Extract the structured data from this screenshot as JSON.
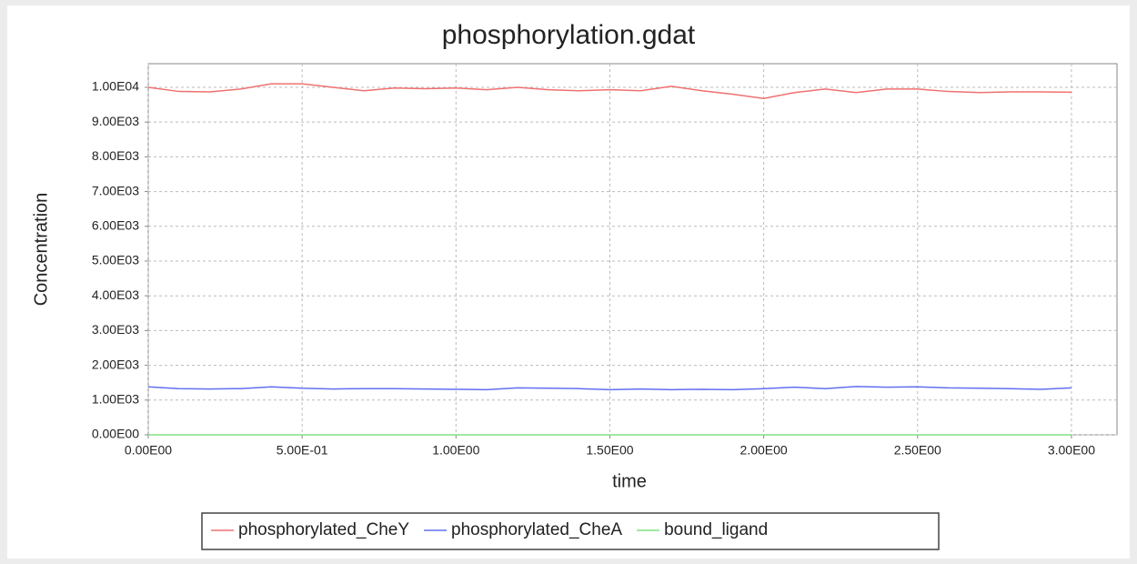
{
  "chart_data": {
    "type": "line",
    "title": "phosphorylation.gdat",
    "xlabel": "time",
    "ylabel": "Concentration",
    "x": [
      0,
      0.1,
      0.2,
      0.3,
      0.4,
      0.5,
      0.6,
      0.7,
      0.8,
      0.9,
      1.0,
      1.1,
      1.2,
      1.3,
      1.4,
      1.5,
      1.6,
      1.7,
      1.8,
      1.9,
      2.0,
      2.1,
      2.2,
      2.3,
      2.4,
      2.5,
      2.6,
      2.7,
      2.8,
      2.9,
      3.0
    ],
    "series": [
      {
        "name": "phosphorylated_CheY",
        "color": "#f07070",
        "values": [
          10000,
          9880,
          9870,
          9950,
          10100,
          10100,
          10000,
          9900,
          9980,
          9960,
          9980,
          9930,
          10000,
          9930,
          9900,
          9930,
          9900,
          10030,
          9900,
          9800,
          9680,
          9850,
          9950,
          9850,
          9950,
          9950,
          9880,
          9850,
          9870,
          9870,
          9860
        ]
      },
      {
        "name": "phosphorylated_CheA",
        "color": "#6070f0",
        "values": [
          1380,
          1330,
          1320,
          1330,
          1380,
          1340,
          1320,
          1330,
          1330,
          1320,
          1310,
          1300,
          1350,
          1340,
          1330,
          1300,
          1320,
          1300,
          1310,
          1300,
          1330,
          1370,
          1330,
          1390,
          1370,
          1380,
          1350,
          1340,
          1330,
          1310,
          1350
        ]
      },
      {
        "name": "bound_ligand",
        "color": "#80e080",
        "values": [
          0,
          0,
          0,
          0,
          0,
          0,
          0,
          0,
          0,
          0,
          0,
          0,
          0,
          0,
          0,
          0,
          0,
          0,
          0,
          0,
          0,
          0,
          0,
          0,
          0,
          0,
          0,
          0,
          0,
          0,
          0
        ]
      }
    ],
    "xlim": [
      0,
      3.148
    ],
    "ylim": [
      0,
      10680
    ],
    "xticks": [
      {
        "value": 0,
        "label": "0.00E00"
      },
      {
        "value": 0.5,
        "label": "5.00E-01"
      },
      {
        "value": 1,
        "label": "1.00E00"
      },
      {
        "value": 1.5,
        "label": "1.50E00"
      },
      {
        "value": 2,
        "label": "2.00E00"
      },
      {
        "value": 2.5,
        "label": "2.50E00"
      },
      {
        "value": 3,
        "label": "3.00E00"
      }
    ],
    "yticks": [
      {
        "value": 0,
        "label": "0.00E00"
      },
      {
        "value": 1000,
        "label": "1.00E03"
      },
      {
        "value": 2000,
        "label": "2.00E03"
      },
      {
        "value": 3000,
        "label": "3.00E03"
      },
      {
        "value": 4000,
        "label": "4.00E03"
      },
      {
        "value": 5000,
        "label": "5.00E03"
      },
      {
        "value": 6000,
        "label": "6.00E03"
      },
      {
        "value": 7000,
        "label": "7.00E03"
      },
      {
        "value": 8000,
        "label": "8.00E03"
      },
      {
        "value": 9000,
        "label": "9.00E03"
      },
      {
        "value": 10000,
        "label": "1.00E04"
      }
    ],
    "grid": true
  }
}
